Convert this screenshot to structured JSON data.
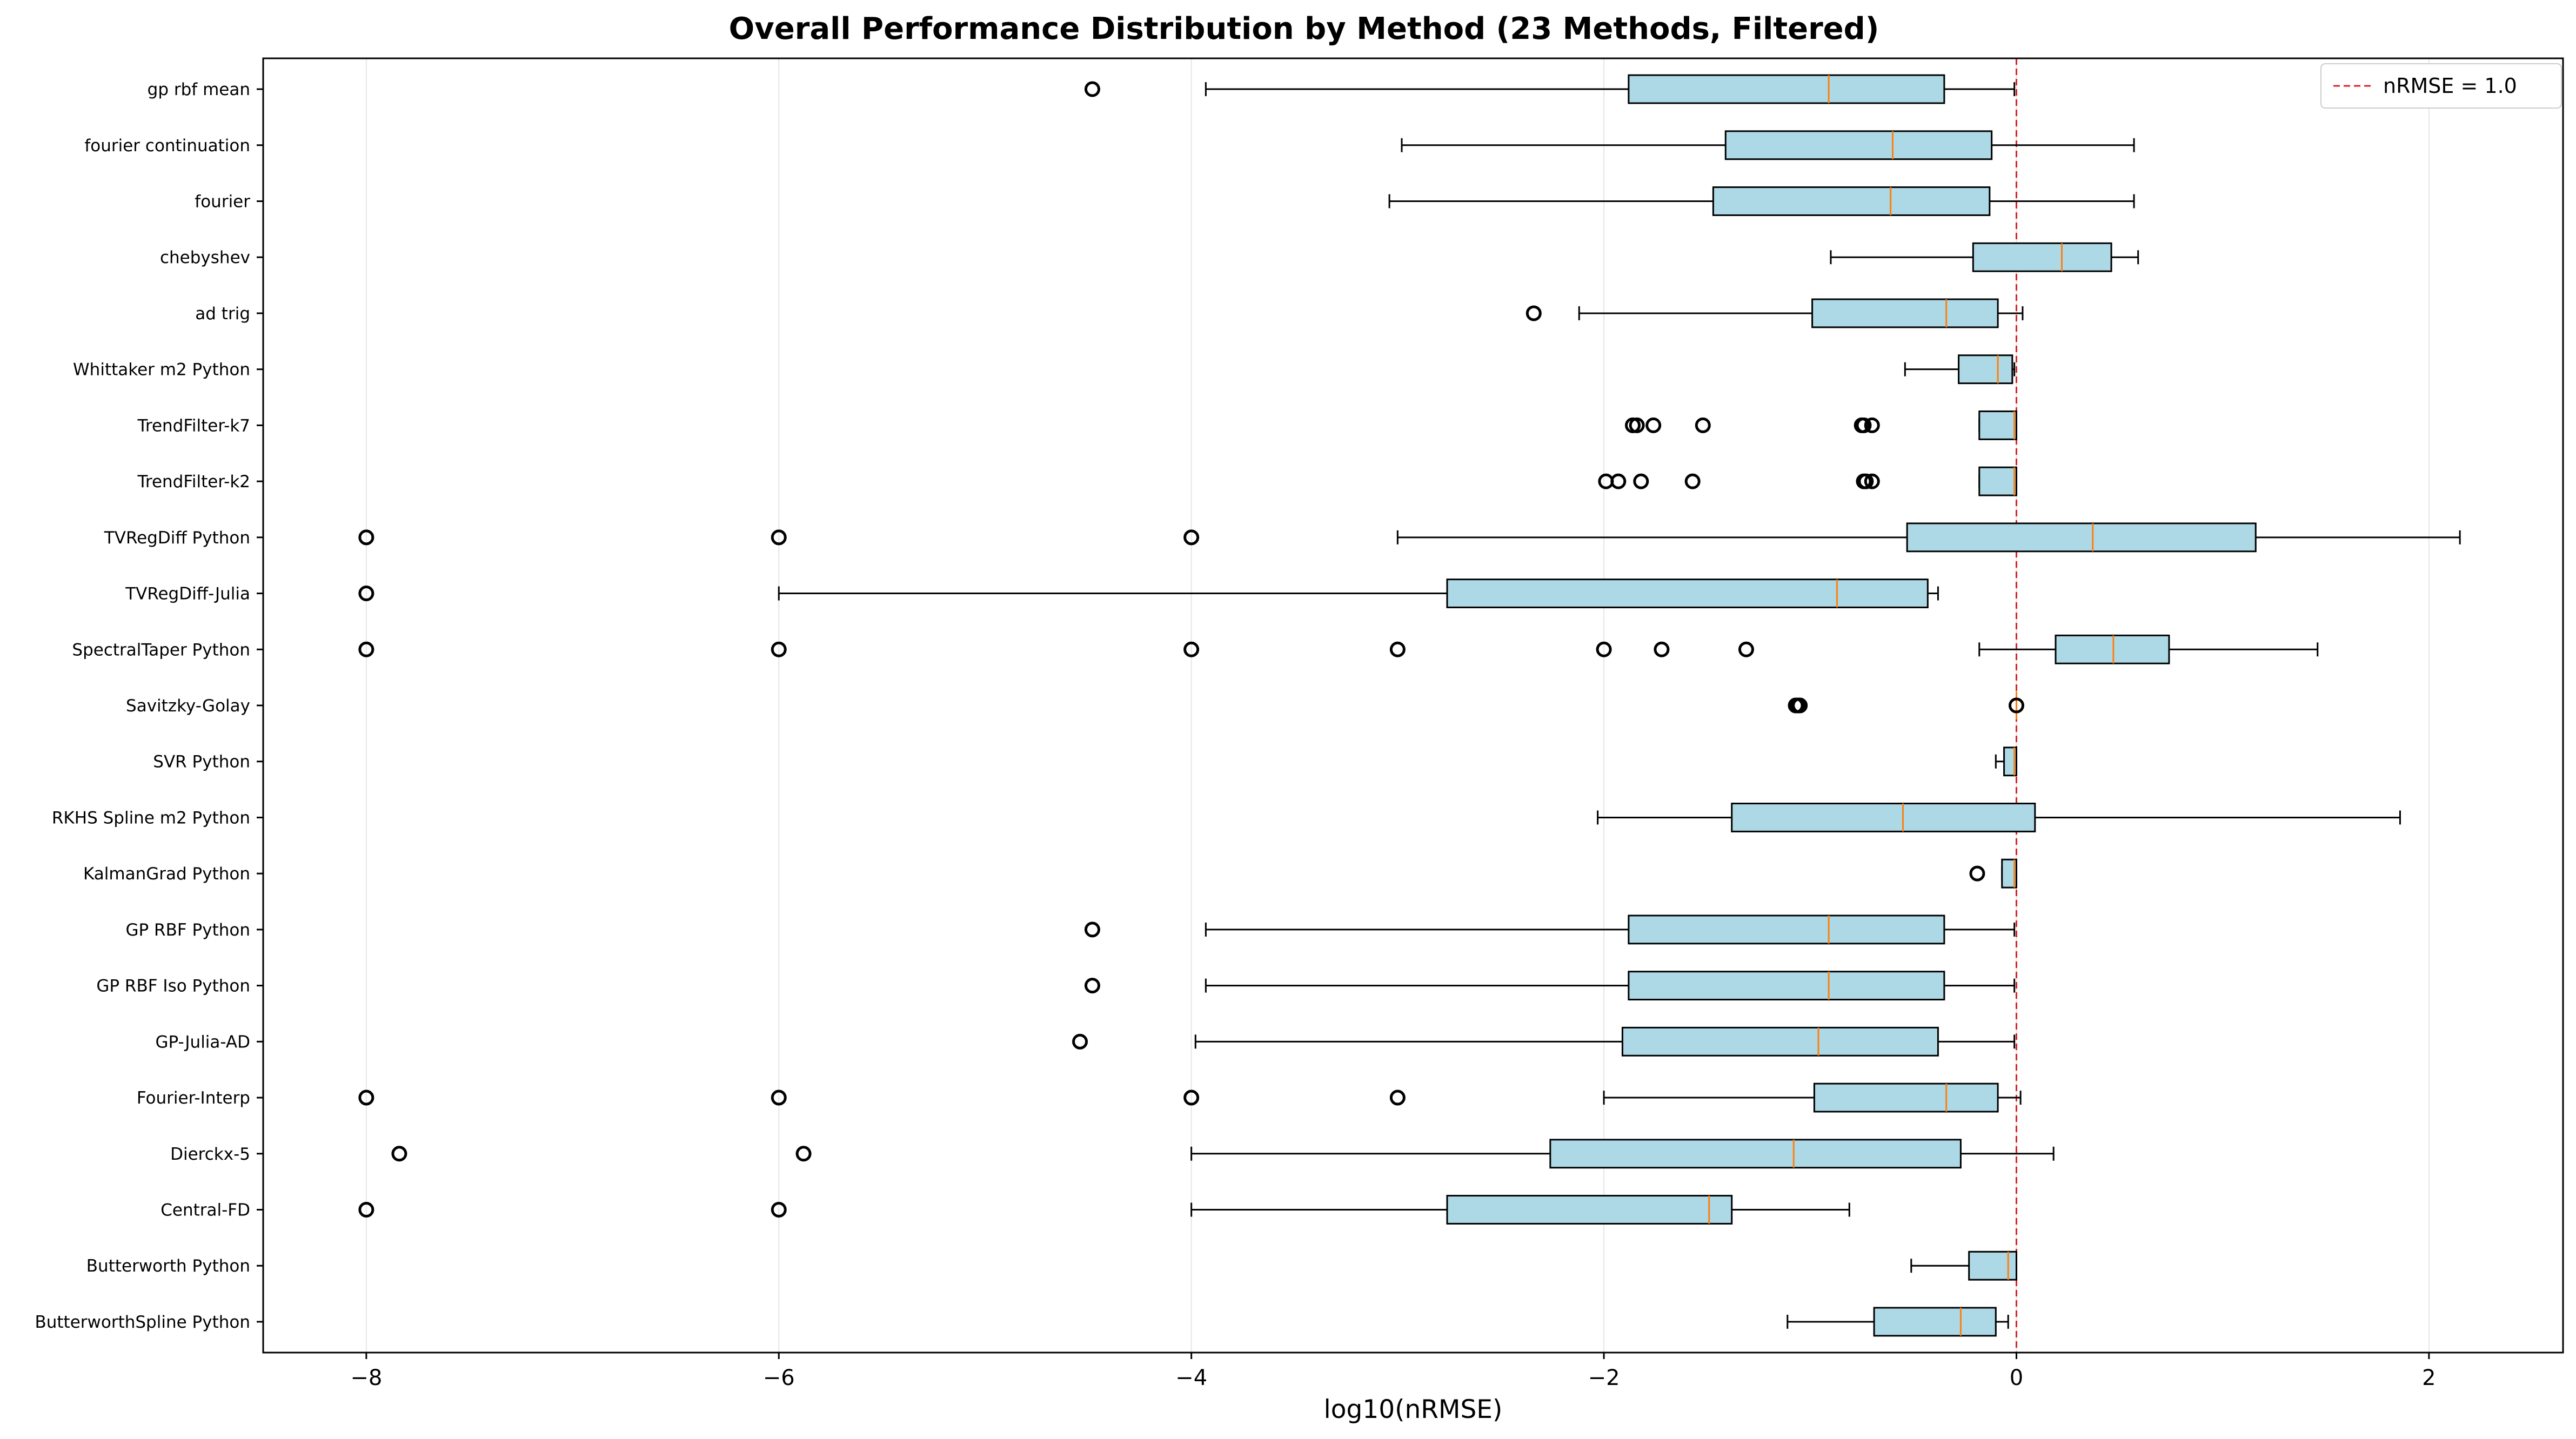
{
  "chart_data": {
    "type": "boxplot",
    "orientation": "horizontal",
    "title": "Overall Performance Distribution by Method (23 Methods, Filtered)",
    "xlabel": "log10(nRMSE)",
    "ylabel": "",
    "xlim": [
      -8.5,
      2.65
    ],
    "xticks": [
      -8,
      -6,
      -4,
      -2,
      0,
      2
    ],
    "xtick_labels": [
      "−8",
      "−6",
      "−4",
      "−2",
      "0",
      "2"
    ],
    "grid": "vertical",
    "legend": {
      "placement": "top-right",
      "entries": [
        "nRMSE = 1.0"
      ]
    },
    "reference_line": {
      "x": 0,
      "label": "nRMSE = 1.0",
      "color": "#d62728",
      "style": "dashed"
    },
    "colors": {
      "box_fill": "#add8e6",
      "median": "#ff7f0e",
      "edge": "#000000",
      "grid": "#e6e6e6"
    },
    "methods": [
      {
        "name": "gp rbf mean",
        "whislo": -3.93,
        "q1": -1.88,
        "med": -0.91,
        "q3": -0.35,
        "whishi": -0.01,
        "fliers": [
          -4.48
        ]
      },
      {
        "name": "fourier continuation",
        "whislo": -2.98,
        "q1": -1.41,
        "med": -0.6,
        "q3": -0.12,
        "whishi": 0.57,
        "fliers": []
      },
      {
        "name": "fourier",
        "whislo": -3.04,
        "q1": -1.47,
        "med": -0.61,
        "q3": -0.13,
        "whishi": 0.57,
        "fliers": []
      },
      {
        "name": "chebyshev",
        "whislo": -0.9,
        "q1": -0.21,
        "med": 0.22,
        "q3": 0.46,
        "whishi": 0.59,
        "fliers": []
      },
      {
        "name": "ad trig",
        "whislo": -2.12,
        "q1": -0.99,
        "med": -0.34,
        "q3": -0.09,
        "whishi": 0.03,
        "fliers": [
          -2.34
        ]
      },
      {
        "name": "Whittaker m2 Python",
        "whislo": -0.54,
        "q1": -0.28,
        "med": -0.09,
        "q3": -0.02,
        "whishi": -0.01,
        "fliers": []
      },
      {
        "name": "TrendFilter-k7",
        "whislo": -0.18,
        "q1": -0.18,
        "med": -0.01,
        "q3": 0.0,
        "whishi": 0.0,
        "fliers": [
          -1.86,
          -1.84,
          -1.76,
          -1.52,
          -0.75,
          -0.74,
          -0.7
        ]
      },
      {
        "name": "TrendFilter-k2",
        "whislo": -0.18,
        "q1": -0.18,
        "med": -0.01,
        "q3": 0.0,
        "whishi": 0.0,
        "fliers": [
          -1.99,
          -1.93,
          -1.82,
          -1.57,
          -0.74,
          -0.73,
          -0.7
        ]
      },
      {
        "name": "TVRegDiff Python",
        "whislo": -3.0,
        "q1": -0.53,
        "med": 0.37,
        "q3": 1.16,
        "whishi": 2.15,
        "fliers": [
          -8.0,
          -6.0,
          -4.0
        ]
      },
      {
        "name": "TVRegDiff-Julia",
        "whislo": -6.0,
        "q1": -2.76,
        "med": -0.87,
        "q3": -0.43,
        "whishi": -0.38,
        "fliers": [
          -8.0
        ]
      },
      {
        "name": "SpectralTaper Python",
        "whislo": -0.18,
        "q1": 0.19,
        "med": 0.47,
        "q3": 0.74,
        "whishi": 1.46,
        "fliers": [
          -8.0,
          -6.0,
          -4.0,
          -3.0,
          -2.0,
          -1.72,
          -1.31
        ]
      },
      {
        "name": "Savitzky-Golay",
        "whislo": 0.0,
        "q1": 0.0,
        "med": 0.0,
        "q3": 0.0,
        "whishi": 0.0,
        "fliers": [
          -1.07,
          -1.06,
          -1.05,
          0.0
        ]
      },
      {
        "name": "SVR Python",
        "whislo": -0.1,
        "q1": -0.06,
        "med": -0.01,
        "q3": 0.0,
        "whishi": 0.0,
        "fliers": []
      },
      {
        "name": "RKHS Spline m2 Python",
        "whislo": -2.03,
        "q1": -1.38,
        "med": -0.55,
        "q3": 0.09,
        "whishi": 1.86,
        "fliers": []
      },
      {
        "name": "KalmanGrad Python",
        "whislo": -0.07,
        "q1": -0.07,
        "med": -0.01,
        "q3": 0.0,
        "whishi": 0.0,
        "fliers": [
          -0.19
        ]
      },
      {
        "name": "GP RBF Python",
        "whislo": -3.93,
        "q1": -1.88,
        "med": -0.91,
        "q3": -0.35,
        "whishi": -0.01,
        "fliers": [
          -4.48
        ]
      },
      {
        "name": "GP RBF Iso Python",
        "whislo": -3.93,
        "q1": -1.88,
        "med": -0.91,
        "q3": -0.35,
        "whishi": -0.01,
        "fliers": [
          -4.48
        ]
      },
      {
        "name": "GP-Julia-AD",
        "whislo": -3.98,
        "q1": -1.91,
        "med": -0.96,
        "q3": -0.38,
        "whishi": -0.01,
        "fliers": [
          -4.54
        ]
      },
      {
        "name": "Fourier-Interp",
        "whislo": -2.0,
        "q1": -0.98,
        "med": -0.34,
        "q3": -0.09,
        "whishi": 0.02,
        "fliers": [
          -8.0,
          -6.0,
          -4.0,
          -3.0
        ]
      },
      {
        "name": "Dierckx-5",
        "whislo": -4.0,
        "q1": -2.26,
        "med": -1.08,
        "q3": -0.27,
        "whishi": 0.18,
        "fliers": [
          -7.84,
          -5.88
        ]
      },
      {
        "name": "Central-FD",
        "whislo": -4.0,
        "q1": -2.76,
        "med": -1.49,
        "q3": -1.38,
        "whishi": -0.81,
        "fliers": [
          -8.0,
          -6.0
        ]
      },
      {
        "name": "Butterworth Python",
        "whislo": -0.51,
        "q1": -0.23,
        "med": -0.04,
        "q3": 0.0,
        "whishi": 0.0,
        "fliers": []
      },
      {
        "name": "ButterworthSpline Python",
        "whislo": -1.11,
        "q1": -0.69,
        "med": -0.27,
        "q3": -0.1,
        "whishi": -0.04,
        "fliers": []
      }
    ]
  }
}
